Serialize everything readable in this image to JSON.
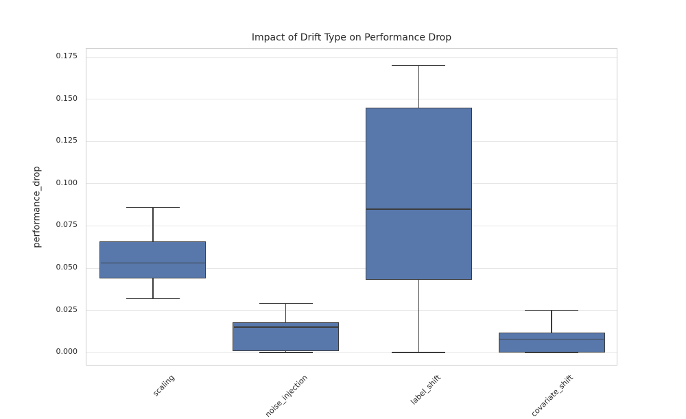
{
  "chart_data": {
    "type": "boxplot",
    "title": "Impact of Drift Type on Performance Drop",
    "xlabel": "",
    "ylabel": "performance_drop",
    "categories": [
      "scaling",
      "noise_injection",
      "label_shift",
      "covariate_shift"
    ],
    "boxes": [
      {
        "category": "scaling",
        "whisker_low": 0.032,
        "q1": 0.044,
        "median": 0.053,
        "q3": 0.066,
        "whisker_high": 0.086
      },
      {
        "category": "noise_injection",
        "whisker_low": 0.0,
        "q1": 0.001,
        "median": 0.015,
        "q3": 0.018,
        "whisker_high": 0.029
      },
      {
        "category": "label_shift",
        "whisker_low": 0.0,
        "q1": 0.043,
        "median": 0.085,
        "q3": 0.145,
        "whisker_high": 0.17
      },
      {
        "category": "covariate_shift",
        "whisker_low": 0.0,
        "q1": 0.0,
        "median": 0.008,
        "q3": 0.012,
        "whisker_high": 0.025
      }
    ],
    "ytick_labels": [
      "0.000",
      "0.025",
      "0.050",
      "0.075",
      "0.100",
      "0.125",
      "0.150",
      "0.175"
    ],
    "ytick_values": [
      0.0,
      0.025,
      0.05,
      0.075,
      0.1,
      0.125,
      0.15,
      0.175
    ],
    "ylim": [
      -0.008,
      0.18
    ],
    "grid": "horizontal",
    "legend": "none",
    "colors": {
      "box_fill": "#5878AC",
      "box_edge": "#3C3C3C",
      "grid_line": "#E6E6E6",
      "spine": "#CCCCCC",
      "text": "#262626"
    }
  }
}
